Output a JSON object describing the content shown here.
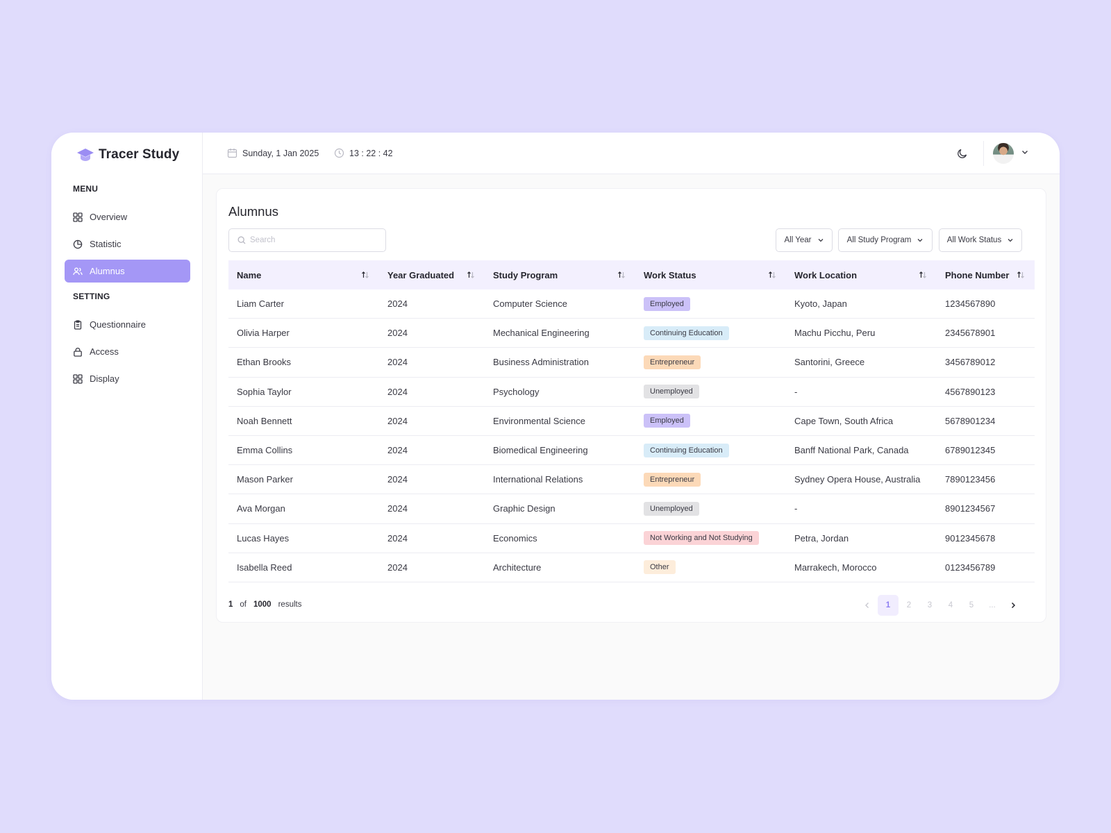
{
  "app": {
    "name": "Tracer Study"
  },
  "sidebar": {
    "menu_label": "MENU",
    "setting_label": "SETTING",
    "menu_items": [
      {
        "label": "Overview",
        "icon": "grid-icon"
      },
      {
        "label": "Statistic",
        "icon": "pie-chart-icon"
      },
      {
        "label": "Alumnus",
        "icon": "users-icon",
        "active": true
      }
    ],
    "setting_items": [
      {
        "label": "Questionnaire",
        "icon": "clipboard-icon"
      },
      {
        "label": "Access",
        "icon": "lock-icon"
      },
      {
        "label": "Display",
        "icon": "grid-icon"
      }
    ]
  },
  "header": {
    "date": "Sunday, 1 Jan 2025",
    "time": "13 : 22 : 42"
  },
  "page": {
    "title": "Alumnus",
    "search_placeholder": "Search",
    "filters": {
      "year": "All Year",
      "study_program": "All Study Program",
      "work_status": "All Work Status"
    }
  },
  "table": {
    "columns": [
      "Name",
      "Year Graduated",
      "Study Program",
      "Work Status",
      "Work Location",
      "Phone Number"
    ],
    "rows": [
      {
        "name": "Liam Carter",
        "year": "2024",
        "program": "Computer Science",
        "status": "Employed",
        "location": "Kyoto, Japan",
        "phone": "1234567890"
      },
      {
        "name": "Olivia Harper",
        "year": "2024",
        "program": "Mechanical Engineering",
        "status": "Continuing Education",
        "location": "Machu Picchu, Peru",
        "phone": "2345678901"
      },
      {
        "name": "Ethan Brooks",
        "year": "2024",
        "program": "Business Administration",
        "status": "Entrepreneur",
        "location": "Santorini, Greece",
        "phone": "3456789012"
      },
      {
        "name": "Sophia Taylor",
        "year": "2024",
        "program": "Psychology",
        "status": "Unemployed",
        "location": "-",
        "phone": "4567890123"
      },
      {
        "name": "Noah Bennett",
        "year": "2024",
        "program": "Environmental Science",
        "status": "Employed",
        "location": "Cape Town, South Africa",
        "phone": "5678901234"
      },
      {
        "name": "Emma Collins",
        "year": "2024",
        "program": "Biomedical Engineering",
        "status": "Continuing Education",
        "location": "Banff National Park, Canada",
        "phone": "6789012345"
      },
      {
        "name": "Mason Parker",
        "year": "2024",
        "program": "International Relations",
        "status": "Entrepreneur",
        "location": "Sydney Opera House, Australia",
        "phone": "7890123456"
      },
      {
        "name": "Ava Morgan",
        "year": "2024",
        "program": "Graphic Design",
        "status": "Unemployed",
        "location": "-",
        "phone": "8901234567"
      },
      {
        "name": "Lucas Hayes",
        "year": "2024",
        "program": "Economics",
        "status": "Not Working and Not Studying",
        "location": "Petra, Jordan",
        "phone": "9012345678"
      },
      {
        "name": "Isabella Reed",
        "year": "2024",
        "program": "Architecture",
        "status": "Other",
        "location": "Marrakech, Morocco",
        "phone": "0123456789"
      }
    ],
    "status_colors": {
      "Employed": "#cbc1f8",
      "Continuing Education": "#d8ecf8",
      "Entrepreneur": "#fcd9b8",
      "Unemployed": "#e2e2e4",
      "Not Working and Not Studying": "#fbd3d6",
      "Other": "#fdeddb"
    }
  },
  "pagination": {
    "current": "1",
    "of_label": "of",
    "total": "1000",
    "results_label": "results",
    "pages": [
      "1",
      "2",
      "3",
      "4",
      "5",
      "..."
    ]
  },
  "colors": {
    "background": "#e0dcfc",
    "accent": "#a497f6",
    "table_header": "#f3f0fe"
  }
}
